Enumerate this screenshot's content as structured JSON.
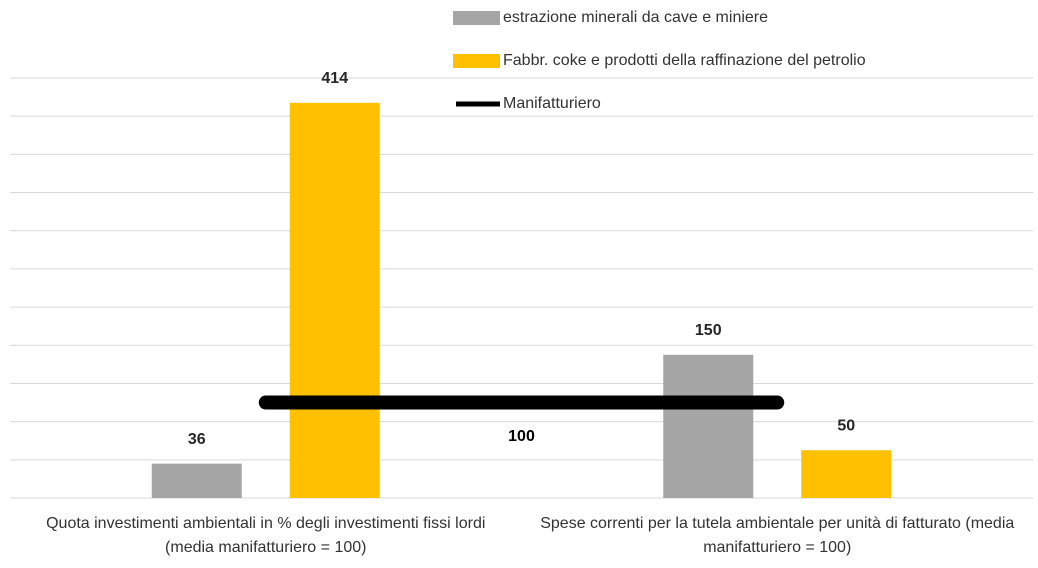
{
  "chart_data": {
    "type": "bar",
    "categories": [
      "Quota investimenti ambientali in % degli investimenti fissi lordi (media manifatturiero = 100)",
      "Spese correnti per la tutela ambientale per unità di fatturato (media manifatturiero = 100)"
    ],
    "series": [
      {
        "name": "estrazione minerali da cave e miniere",
        "color": "#a5a5a5",
        "values": [
          36,
          150
        ]
      },
      {
        "name": "Fabbr. coke e prodotti della raffinazione del petrolio",
        "color": "#ffc000",
        "values": [
          414,
          50
        ]
      },
      {
        "name": "Manifatturiero",
        "color": "#000000",
        "type": "line",
        "values": [
          100,
          100
        ]
      }
    ],
    "ylim": [
      0,
      440
    ],
    "yticks": [
      0,
      40,
      80,
      120,
      160,
      200,
      240,
      280,
      320,
      360,
      400,
      440
    ],
    "grid": true
  }
}
